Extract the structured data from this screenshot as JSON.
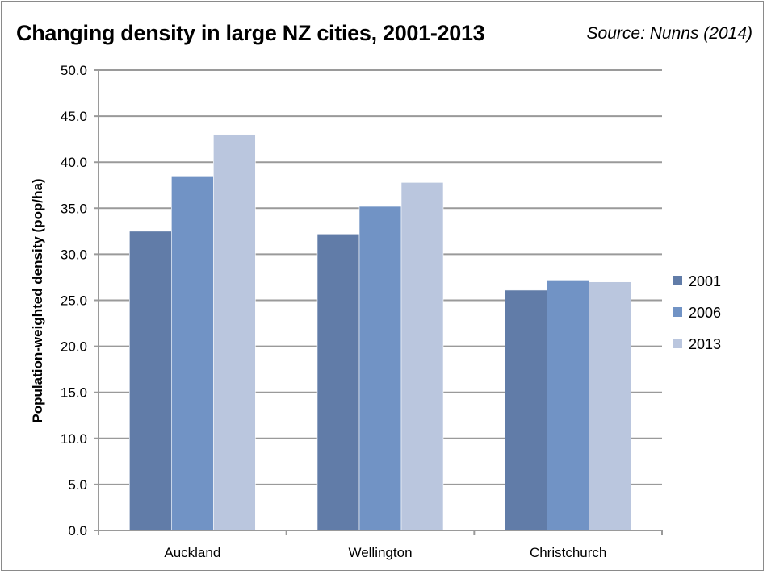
{
  "chart_data": {
    "type": "bar",
    "title": "Changing density in large NZ cities, 2001-2013",
    "source": "Source: Nunns (2014)",
    "xlabel": "",
    "ylabel": "Population-weighted density (pop/ha)",
    "ylim": [
      0,
      50
    ],
    "yticks": [
      "0.0",
      "5.0",
      "10.0",
      "15.0",
      "20.0",
      "25.0",
      "30.0",
      "35.0",
      "40.0",
      "45.0",
      "50.0"
    ],
    "categories": [
      "Auckland",
      "Wellington",
      "Christchurch"
    ],
    "series": [
      {
        "name": "2001",
        "color": "#617ca8",
        "values": [
          32.5,
          32.2,
          26.1
        ]
      },
      {
        "name": "2006",
        "color": "#7193c5",
        "values": [
          38.5,
          35.2,
          27.2
        ]
      },
      {
        "name": "2013",
        "color": "#bac6de",
        "values": [
          43.0,
          37.8,
          27.0
        ]
      }
    ],
    "grid": true,
    "legend": "right"
  }
}
